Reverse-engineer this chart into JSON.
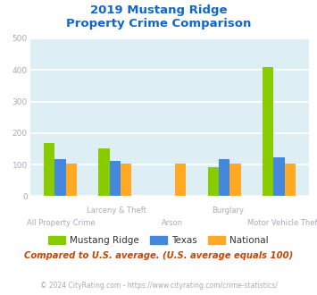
{
  "title_line1": "2019 Mustang Ridge",
  "title_line2": "Property Crime Comparison",
  "categories": [
    "All Property Crime",
    "Larceny & Theft",
    "Arson",
    "Burglary",
    "Motor Vehicle Theft"
  ],
  "series": {
    "Mustang Ridge": [
      168,
      152,
      0,
      92,
      410
    ],
    "Texas": [
      118,
      112,
      0,
      118,
      124
    ],
    "National": [
      102,
      103,
      103,
      104,
      103
    ]
  },
  "colors": {
    "Mustang Ridge": "#88cc00",
    "Texas": "#4488dd",
    "National": "#ffaa22"
  },
  "ylim": [
    0,
    500
  ],
  "yticks": [
    0,
    100,
    200,
    300,
    400,
    500
  ],
  "bg_color": "#ddeef4",
  "grid_color": "#ffffff",
  "subtitle": "Compared to U.S. average. (U.S. average equals 100)",
  "footer": "© 2024 CityRating.com - https://www.cityrating.com/crime-statistics/",
  "subtitle_color": "#cc4400",
  "footer_color": "#aaaaaa",
  "title_color": "#1166cc",
  "xticklabel_color": "#aaaabb",
  "yticklabel_color": "#aaaabb",
  "bar_width": 0.2
}
